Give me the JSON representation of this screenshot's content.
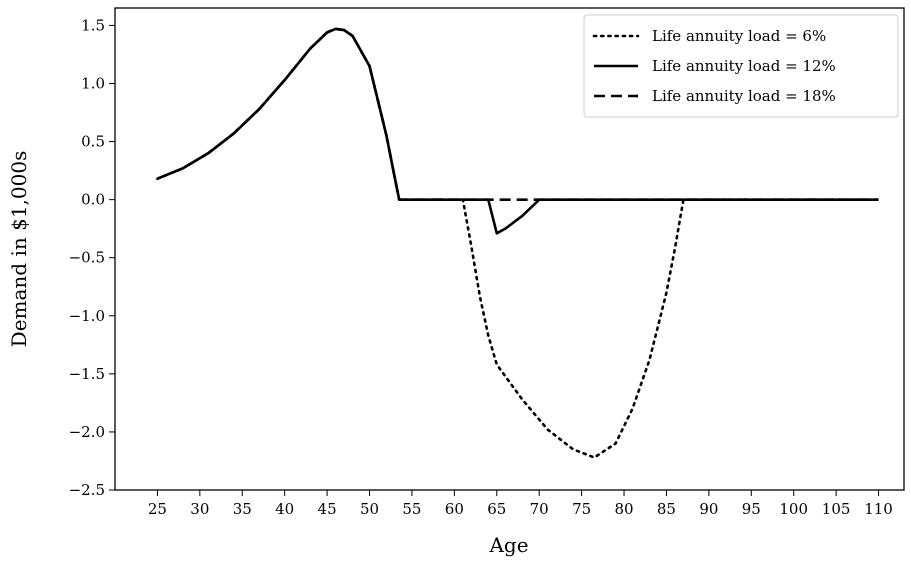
{
  "chart_data": {
    "type": "line",
    "xlabel": "Age",
    "ylabel": "Demand in $1,000s",
    "xlim": [
      20,
      113
    ],
    "ylim": [
      -2.5,
      1.65
    ],
    "xticks": [
      25,
      30,
      35,
      40,
      45,
      50,
      55,
      60,
      65,
      70,
      75,
      80,
      85,
      90,
      95,
      100,
      105,
      110
    ],
    "yticks": [
      -2.5,
      -2.0,
      -1.5,
      -1.0,
      -0.5,
      0.0,
      0.5,
      1.0,
      1.5
    ],
    "ytick_labels": [
      "−2.5",
      "−2.0",
      "−1.5",
      "−1.0",
      "−0.5",
      "0.0",
      "0.5",
      "1.0",
      "1.5"
    ],
    "grid": false,
    "legend_position": "top-right",
    "series": [
      {
        "name": "Life annuity load = 6%",
        "style": "dotted",
        "color": "#000000",
        "x": [
          25,
          28,
          31,
          34,
          37,
          40,
          43,
          45,
          46,
          47,
          48,
          50,
          51,
          52,
          53,
          53.5,
          61,
          62,
          63,
          64,
          65,
          68,
          71,
          74,
          76.5,
          79,
          81,
          83,
          85,
          86,
          87,
          110
        ],
        "y": [
          0.18,
          0.27,
          0.4,
          0.57,
          0.78,
          1.03,
          1.3,
          1.44,
          1.47,
          1.46,
          1.41,
          1.15,
          0.85,
          0.55,
          0.18,
          0.0,
          0.0,
          -0.4,
          -0.83,
          -1.17,
          -1.42,
          -1.72,
          -1.98,
          -2.15,
          -2.22,
          -2.1,
          -1.8,
          -1.38,
          -0.8,
          -0.42,
          0.0,
          0.0
        ]
      },
      {
        "name": "Life annuity load = 12%",
        "style": "solid",
        "color": "#000000",
        "x": [
          25,
          28,
          31,
          34,
          37,
          40,
          43,
          45,
          46,
          47,
          48,
          50,
          51,
          52,
          53,
          53.5,
          64,
          65,
          66,
          68,
          70,
          110
        ],
        "y": [
          0.18,
          0.27,
          0.4,
          0.57,
          0.78,
          1.03,
          1.3,
          1.44,
          1.47,
          1.46,
          1.41,
          1.15,
          0.85,
          0.55,
          0.18,
          0.0,
          0.0,
          -0.29,
          -0.25,
          -0.14,
          0.0,
          0.0
        ]
      },
      {
        "name": "Life annuity load = 18%",
        "style": "dashed",
        "color": "#000000",
        "x": [
          25,
          28,
          31,
          34,
          37,
          40,
          43,
          45,
          46,
          47,
          48,
          50,
          51,
          52,
          53,
          53.5,
          110
        ],
        "y": [
          0.18,
          0.27,
          0.4,
          0.57,
          0.78,
          1.03,
          1.3,
          1.44,
          1.47,
          1.46,
          1.41,
          1.15,
          0.85,
          0.55,
          0.18,
          0.0,
          0.0
        ]
      }
    ]
  }
}
